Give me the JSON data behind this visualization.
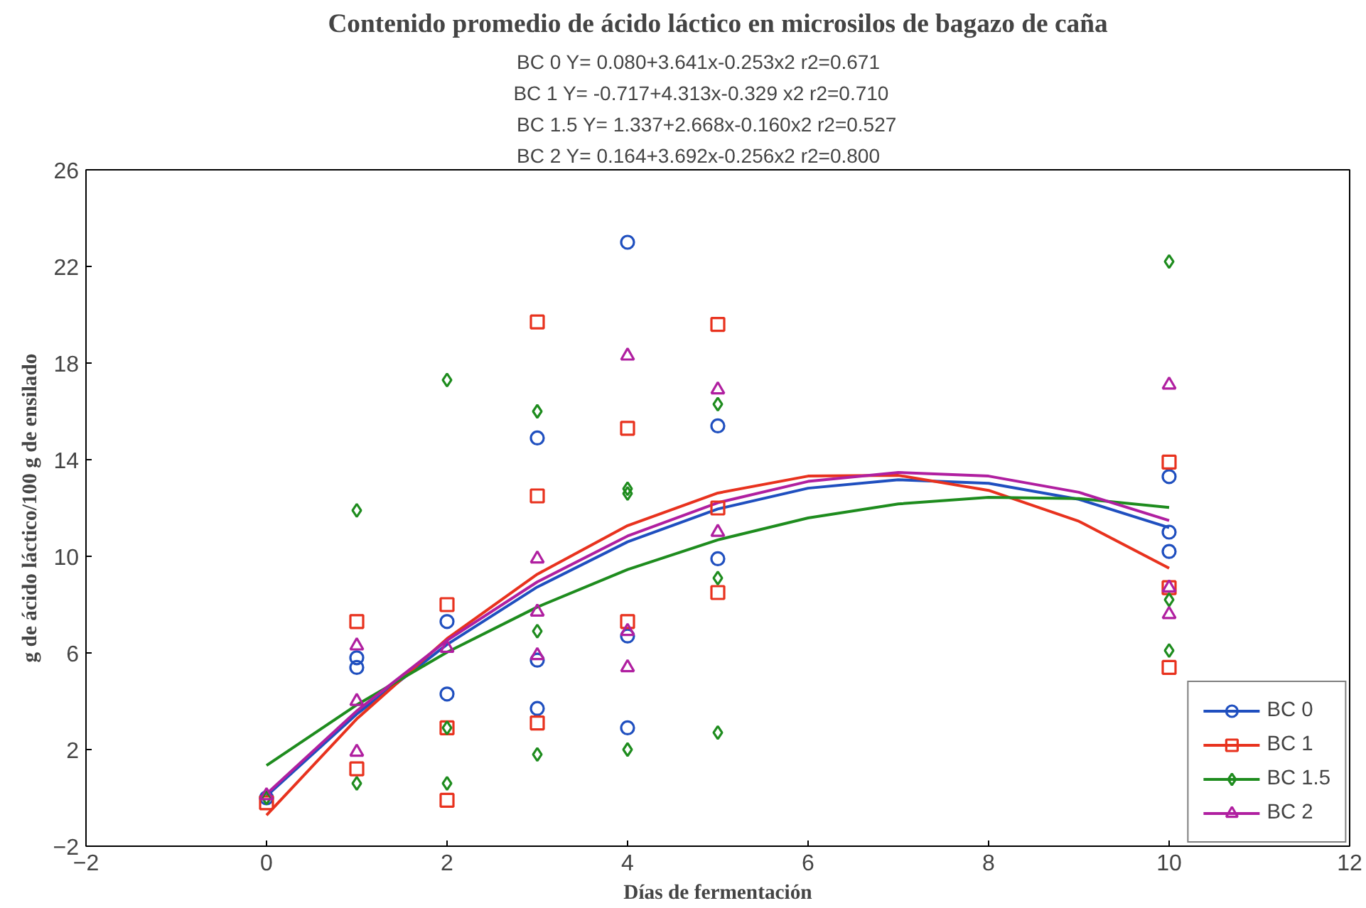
{
  "chart_data": {
    "type": "scatter",
    "title": "Contenido promedio de ácido láctico en microsilos de bagazo de caña",
    "annotations": [
      "BC 0 Y=   0.080+3.641x-0.253x2      r2=0.671",
      "BC 1 Y=  -0.717+4.313x-0.329 x2      r2=0.710",
      "BC 1.5 Y=   1.337+2.668x-0.160x2   r2=0.527",
      "BC 2 Y=  0.164+3.692x-0.256x2       r2=0.800"
    ],
    "xlabel": "Días de fermentación",
    "ylabel": "g de ácido láctico/100 g de ensilado",
    "xlim": [
      -2,
      12
    ],
    "xticks": [
      -2,
      0,
      2,
      4,
      6,
      8,
      10,
      12
    ],
    "ylim": [
      -2,
      26
    ],
    "yticks": [
      -2,
      2,
      6,
      10,
      14,
      18,
      22,
      26
    ],
    "grid": false,
    "legend": "bottom right",
    "series": [
      {
        "name": "BC 0",
        "color": "#1f4fbf",
        "marker": "circle",
        "x": [
          0,
          1,
          1,
          2,
          2,
          3,
          3,
          3,
          4,
          4,
          4,
          5,
          5,
          10,
          10,
          10
        ],
        "values": [
          0,
          5.4,
          5.8,
          7.3,
          4.3,
          14.9,
          5.7,
          3.7,
          23.0,
          6.7,
          2.9,
          15.4,
          9.9,
          13.3,
          11.0,
          10.2
        ]
      },
      {
        "name": "BC 1",
        "color": "#e8321e",
        "marker": "square",
        "x": [
          0,
          1,
          1,
          2,
          2,
          2,
          3,
          3,
          3,
          4,
          4,
          5,
          5,
          5,
          10,
          10,
          10
        ],
        "values": [
          -0.2,
          7.3,
          1.2,
          8.0,
          2.9,
          -0.1,
          19.7,
          12.5,
          3.1,
          15.3,
          7.3,
          19.6,
          12.0,
          8.5,
          13.9,
          8.7,
          5.4
        ]
      },
      {
        "name": "BC 1.5",
        "color": "#1e8c1e",
        "marker": "diamond",
        "x": [
          0,
          1,
          1,
          2,
          2,
          2,
          3,
          3,
          3,
          4,
          4,
          4,
          5,
          5,
          5,
          10,
          10,
          10
        ],
        "values": [
          0,
          11.9,
          0.6,
          17.3,
          2.9,
          0.6,
          16.0,
          6.9,
          1.8,
          12.8,
          12.6,
          2.0,
          16.3,
          9.1,
          2.7,
          22.2,
          8.2,
          6.1
        ]
      },
      {
        "name": "BC 2",
        "color": "#b01fa0",
        "marker": "triangle",
        "x": [
          0,
          1,
          1,
          1,
          2,
          3,
          3,
          3,
          4,
          4,
          4,
          5,
          5,
          10,
          10,
          10
        ],
        "values": [
          0.1,
          6.3,
          4.0,
          1.9,
          6.2,
          9.9,
          7.7,
          5.9,
          18.3,
          6.9,
          5.4,
          16.9,
          11.0,
          17.1,
          8.7,
          7.6
        ]
      },
      {
        "type": "line",
        "color": "#1f4fbf",
        "marker": "none",
        "x": [
          0,
          1,
          2,
          3,
          4,
          5,
          6,
          7,
          8,
          9,
          10
        ],
        "values": [
          0.08,
          3.47,
          6.35,
          8.73,
          10.6,
          11.96,
          12.82,
          13.17,
          13.02,
          12.36,
          11.19
        ]
      },
      {
        "type": "line",
        "color": "#e8321e",
        "marker": "none",
        "x": [
          0,
          1,
          2,
          3,
          4,
          5,
          6,
          7,
          8,
          9,
          10
        ],
        "values": [
          -0.72,
          3.27,
          6.59,
          9.26,
          11.27,
          12.62,
          13.32,
          13.35,
          12.73,
          11.45,
          9.51
        ]
      },
      {
        "type": "line",
        "color": "#1e8c1e",
        "marker": "none",
        "x": [
          0,
          1,
          2,
          3,
          4,
          5,
          6,
          7,
          8,
          9,
          10
        ],
        "values": [
          1.34,
          3.85,
          6.03,
          7.9,
          9.45,
          10.68,
          11.59,
          12.17,
          12.44,
          12.39,
          12.02
        ]
      },
      {
        "type": "line",
        "color": "#b01fa0",
        "marker": "none",
        "x": [
          0,
          1,
          2,
          3,
          4,
          5,
          6,
          7,
          8,
          9,
          10
        ],
        "values": [
          0.16,
          3.6,
          6.52,
          8.94,
          10.84,
          12.22,
          13.1,
          13.47,
          13.32,
          12.65,
          11.48
        ]
      }
    ]
  }
}
